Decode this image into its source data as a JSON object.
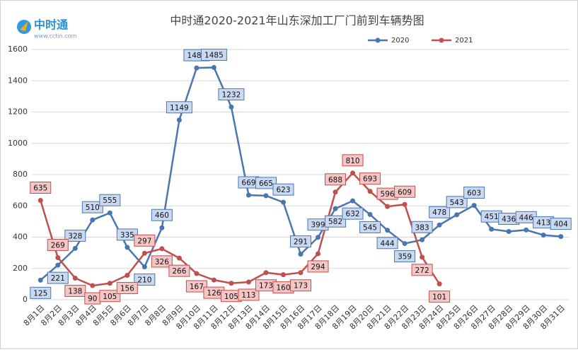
{
  "logo": {
    "name": "中时通",
    "url": "www.cctin.com"
  },
  "chart_data": {
    "type": "line",
    "title": "中时通2020-2021年山东深加工厂门前到车辆势图",
    "categories": [
      "8月1日",
      "8月2日",
      "8月3日",
      "8月4日",
      "8月5日",
      "8月6日",
      "8月7日",
      "8月8日",
      "8月9日",
      "8月10日",
      "8月11日",
      "8月12日",
      "8月13日",
      "8月14日",
      "8月15日",
      "8月16日",
      "8月17日",
      "8月18日",
      "8月19日",
      "8月20日",
      "8月21日",
      "8月22日",
      "8月23日",
      "8月24日",
      "8月25日",
      "8月26日",
      "8月27日",
      "8月28日",
      "8月29日",
      "8月30日",
      "8月31日"
    ],
    "series": [
      {
        "name": "2020",
        "color": "#4a76b0",
        "label_fill": "#c9d9f2",
        "values": [
          125,
          221,
          328,
          510,
          555,
          335,
          210,
          460,
          1149,
          1482,
          1485,
          1232,
          669,
          665,
          623,
          291,
          399,
          582,
          632,
          545,
          444,
          359,
          383,
          478,
          543,
          603,
          451,
          436,
          446,
          413,
          404
        ]
      },
      {
        "name": "2021",
        "color": "#c0504d",
        "label_fill": "#f4c6c5",
        "values": [
          635,
          269,
          138,
          90,
          105,
          156,
          297,
          326,
          266,
          167,
          126,
          105,
          113,
          173,
          160,
          173,
          294,
          688,
          810,
          693,
          596,
          609,
          272,
          101,
          null,
          null,
          null,
          null,
          null,
          null,
          null
        ]
      }
    ],
    "ylim": [
      0,
      1600
    ],
    "yticks": [
      0,
      200,
      400,
      600,
      800,
      1000,
      1200,
      1400,
      1600
    ],
    "grid": true,
    "legend": "top-right"
  }
}
